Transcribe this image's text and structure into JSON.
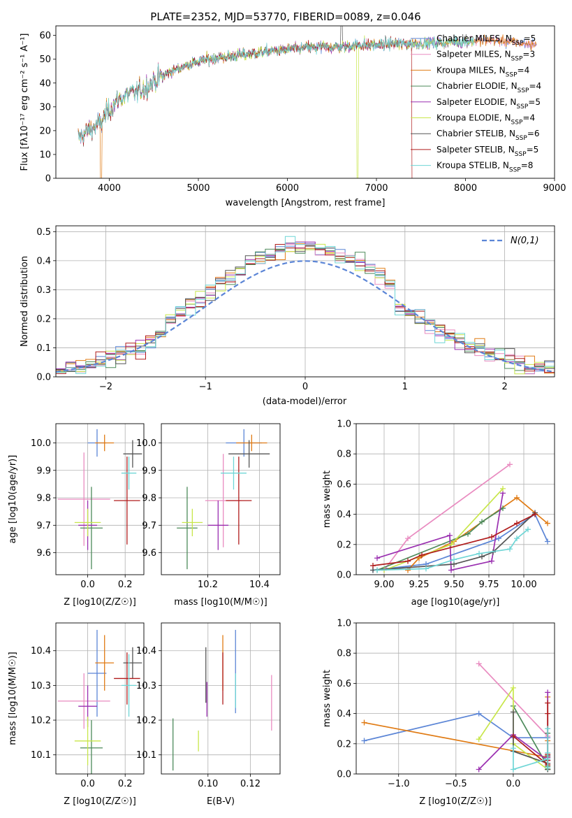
{
  "colors": {
    "chabrier_miles": "#5b85d6",
    "salpeter_miles": "#e98bc0",
    "kroupa_miles": "#e07b14",
    "chabrier_elodie": "#4c8a5a",
    "salpeter_elodie": "#9a2fb0",
    "kroupa_elodie": "#c8e64a",
    "chabrier_stelib": "#555555",
    "salpeter_stelib": "#b01c1c",
    "kroupa_stelib": "#6fd6d6",
    "normal_curve": "#5b85d6",
    "grid": "#b0b0b0"
  },
  "chart_data": [
    {
      "type": "line",
      "title": "PLATE=2352, MJD=53770, FIBERID=0089, z=0.046",
      "xlabel": "wavelength [Angstrom, rest frame]",
      "ylabel": "Flux [fλ10⁻¹⁷ erg cm⁻² s⁻¹ A⁻¹]",
      "xlim": [
        3400,
        9000
      ],
      "ylim": [
        0,
        64
      ],
      "xticks": [
        4000,
        5000,
        6000,
        7000,
        8000,
        9000
      ],
      "yticks": [
        0,
        10,
        20,
        30,
        40,
        50,
        60
      ],
      "grid": false,
      "legend_position": "upper-right",
      "legend": [
        {
          "label": "Chabrier MILES, N",
          "sub": "SSP",
          "val": "=5"
        },
        {
          "label": "Salpeter MILES, N",
          "sub": "SSP",
          "val": "=3"
        },
        {
          "label": "Kroupa MILES, N",
          "sub": "SSP",
          "val": "=4"
        },
        {
          "label": "Chabrier ELODIE, N",
          "sub": "SSP",
          "val": "=4"
        },
        {
          "label": "Salpeter ELODIE, N",
          "sub": "SSP",
          "val": "=5"
        },
        {
          "label": "Kroupa ELODIE, N",
          "sub": "SSP",
          "val": "=4"
        },
        {
          "label": "Chabrier STELIB, N",
          "sub": "SSP",
          "val": "=6"
        },
        {
          "label": "Salpeter STELIB, N",
          "sub": "SSP",
          "val": "=5"
        },
        {
          "label": "Kroupa STELIB, N",
          "sub": "SSP",
          "val": "=8"
        }
      ],
      "spectrum_envelope": {
        "x": [
          3650,
          3800,
          3900,
          4000,
          4100,
          4200,
          4300,
          4400,
          4500,
          4700,
          4900,
          5100,
          5300,
          5500,
          5700,
          6000,
          6300,
          6600,
          6800,
          7000,
          7200,
          7400,
          7700,
          8000,
          8300,
          8600,
          8800
        ],
        "y": [
          17,
          21,
          23,
          29,
          33,
          35,
          36,
          38,
          41,
          45,
          48,
          50,
          51,
          52,
          53,
          54,
          55,
          55,
          56,
          56,
          56.5,
          56.5,
          57,
          57.5,
          58,
          57,
          56
        ]
      }
    },
    {
      "type": "step",
      "xlabel": "(data-model)/error",
      "ylabel": "Normed distribution",
      "xlim": [
        -2.5,
        2.5
      ],
      "ylim": [
        0,
        0.52
      ],
      "xticks": [
        -2,
        -1,
        0,
        1,
        2
      ],
      "yticks": [
        0.0,
        0.1,
        0.2,
        0.3,
        0.4,
        0.5
      ],
      "grid": true,
      "legend_position": "upper-right",
      "legend": [
        "N(0,1)"
      ],
      "bin_width": 0.1
    },
    {
      "type": "errorbar",
      "xlabel": "Z [log10(Z/Z☉)]",
      "ylabel": "age  [log10(age/yr)]",
      "xlim": [
        -0.17,
        0.3
      ],
      "ylim": [
        9.52,
        10.07
      ],
      "xticks": [
        0.0,
        0.2
      ],
      "yticks": [
        9.6,
        9.7,
        9.8,
        9.9,
        10.0
      ],
      "grid": true,
      "points": [
        {
          "x": 0.05,
          "xe": 0.05,
          "y": 10.0,
          "ye": 0.05
        },
        {
          "x": -0.02,
          "xe": 0.14,
          "y": 9.795,
          "ye": 0.17
        },
        {
          "x": 0.09,
          "xe": 0.05,
          "y": 10.0,
          "ye": 0.03
        },
        {
          "x": 0.02,
          "xe": 0.06,
          "y": 9.69,
          "ye": 0.15
        },
        {
          "x": 0.0,
          "xe": 0.05,
          "y": 9.7,
          "ye": 0.09
        },
        {
          "x": 0.0,
          "xe": 0.07,
          "y": 9.71,
          "ye": 0.05
        },
        {
          "x": 0.24,
          "xe": 0.05,
          "y": 9.96,
          "ye": 0.05
        },
        {
          "x": 0.21,
          "xe": 0.07,
          "y": 9.79,
          "ye": 0.16
        },
        {
          "x": 0.22,
          "xe": 0.04,
          "y": 9.89,
          "ye": 0.06
        }
      ]
    },
    {
      "type": "errorbar",
      "xlabel": "mass [log10(M/M☉)]",
      "ylabel": "",
      "xlim": [
        10.02,
        10.48
      ],
      "ylim": [
        9.52,
        10.07
      ],
      "xticks": [
        10.2,
        10.4
      ],
      "yticks": [
        9.6,
        9.7,
        9.8,
        9.9,
        10.0
      ],
      "grid": true,
      "points": [
        {
          "x": 10.34,
          "xe": 0.07,
          "y": 10.0,
          "ye": 0.05
        },
        {
          "x": 10.26,
          "xe": 0.07,
          "y": 9.79,
          "ye": 0.17
        },
        {
          "x": 10.37,
          "xe": 0.06,
          "y": 10.0,
          "ye": 0.03
        },
        {
          "x": 10.12,
          "xe": 0.04,
          "y": 9.69,
          "ye": 0.15
        },
        {
          "x": 10.24,
          "xe": 0.04,
          "y": 9.7,
          "ye": 0.09
        },
        {
          "x": 10.14,
          "xe": 0.04,
          "y": 9.71,
          "ye": 0.05
        },
        {
          "x": 10.36,
          "xe": 0.08,
          "y": 9.96,
          "ye": 0.05
        },
        {
          "x": 10.32,
          "xe": 0.05,
          "y": 9.79,
          "ye": 0.16
        },
        {
          "x": 10.3,
          "xe": 0.05,
          "y": 9.89,
          "ye": 0.06
        }
      ]
    },
    {
      "type": "line",
      "xlabel": "age  [log10(age/yr)]",
      "ylabel": "mass weight",
      "xlim": [
        8.8,
        10.22
      ],
      "ylim": [
        0,
        1.0
      ],
      "xticks": [
        9.0,
        9.25,
        9.5,
        9.75,
        10.0
      ],
      "yticks": [
        0.0,
        0.2,
        0.4,
        0.6,
        0.8,
        1.0
      ],
      "grid": true,
      "series": [
        {
          "x": [
            8.92,
            9.3,
            9.82,
            10.08,
            10.17
          ],
          "y": [
            0.03,
            0.07,
            0.24,
            0.4,
            0.22
          ]
        },
        {
          "x": [
            9.0,
            9.17,
            9.9
          ],
          "y": [
            0.03,
            0.24,
            0.73
          ]
        },
        {
          "x": [
            9.17,
            9.25,
            9.5,
            9.95,
            10.17
          ],
          "y": [
            0.03,
            0.11,
            0.22,
            0.51,
            0.34
          ]
        },
        {
          "x": [
            8.95,
            9.6,
            9.7,
            9.85
          ],
          "y": [
            0.03,
            0.27,
            0.35,
            0.44
          ]
        },
        {
          "x": [
            8.95,
            9.47,
            9.48,
            9.77,
            9.85
          ],
          "y": [
            0.11,
            0.26,
            0.03,
            0.09,
            0.54
          ]
        },
        {
          "x": [
            9.0,
            9.48,
            9.85
          ],
          "y": [
            0.03,
            0.2,
            0.57
          ]
        },
        {
          "x": [
            8.92,
            9.5,
            9.7,
            9.78,
            10.08
          ],
          "y": [
            0.03,
            0.07,
            0.12,
            0.15,
            0.41
          ]
        },
        {
          "x": [
            8.92,
            9.17,
            9.27,
            9.77,
            9.95,
            10.08
          ],
          "y": [
            0.06,
            0.09,
            0.13,
            0.25,
            0.34,
            0.4
          ]
        },
        {
          "x": [
            8.95,
            9.3,
            9.5,
            9.68,
            9.9,
            9.95,
            10.03
          ],
          "y": [
            0.03,
            0.04,
            0.1,
            0.14,
            0.17,
            0.24,
            0.3
          ]
        }
      ]
    },
    {
      "type": "errorbar",
      "xlabel": "Z [log10(Z/Z☉)]",
      "ylabel": "mass [log10(M/M☉)]",
      "xlim": [
        -0.17,
        0.3
      ],
      "ylim": [
        10.045,
        10.48
      ],
      "xticks": [
        0.0,
        0.2
      ],
      "yticks": [
        10.1,
        10.2,
        10.3,
        10.4
      ],
      "grid": true,
      "points": [
        {
          "x": 0.05,
          "xe": 0.05,
          "y": 10.335,
          "ye": 0.125
        },
        {
          "x": -0.02,
          "xe": 0.14,
          "y": 10.255,
          "ye": 0.08
        },
        {
          "x": 0.09,
          "xe": 0.05,
          "y": 10.365,
          "ye": 0.08
        },
        {
          "x": 0.02,
          "xe": 0.06,
          "y": 10.12,
          "ye": 0.08
        },
        {
          "x": 0.0,
          "xe": 0.05,
          "y": 10.24,
          "ye": 0.06
        },
        {
          "x": 0.0,
          "xe": 0.07,
          "y": 10.14,
          "ye": 0.07
        },
        {
          "x": 0.24,
          "xe": 0.05,
          "y": 10.365,
          "ye": 0.045
        },
        {
          "x": 0.21,
          "xe": 0.07,
          "y": 10.32,
          "ye": 0.075
        },
        {
          "x": 0.22,
          "xe": 0.04,
          "y": 10.3,
          "ye": 0.09
        }
      ]
    },
    {
      "type": "errorbar",
      "xlabel": "E(B-V)",
      "ylabel": "",
      "xlim": [
        0.078,
        0.134
      ],
      "ylim": [
        10.045,
        10.48
      ],
      "xticks": [
        0.1,
        0.12
      ],
      "yticks": [
        10.1,
        10.2,
        10.3,
        10.4
      ],
      "grid": true,
      "points": [
        {
          "x": 0.113,
          "xe": 0.0,
          "y": 10.34,
          "ye": 0.12
        },
        {
          "x": 0.13,
          "xe": 0.0,
          "y": 10.25,
          "ye": 0.08
        },
        {
          "x": 0.107,
          "xe": 0.0,
          "y": 10.365,
          "ye": 0.08
        },
        {
          "x": 0.0835,
          "xe": 0.0,
          "y": 10.13,
          "ye": 0.075
        },
        {
          "x": 0.0995,
          "xe": 0.0,
          "y": 10.26,
          "ye": 0.05
        },
        {
          "x": 0.0955,
          "xe": 0.0,
          "y": 10.14,
          "ye": 0.03
        },
        {
          "x": 0.099,
          "xe": 0.0,
          "y": 10.33,
          "ye": 0.08
        },
        {
          "x": 0.107,
          "xe": 0.0,
          "y": 10.32,
          "ye": 0.075
        },
        {
          "x": 0.113,
          "xe": 0.0,
          "y": 10.285,
          "ye": 0.05
        }
      ]
    },
    {
      "type": "line",
      "xlabel": "Z [log10(Z/Z☉)]",
      "ylabel": "mass weight",
      "xlim": [
        -1.37,
        0.36
      ],
      "ylim": [
        0,
        1.0
      ],
      "xticks": [
        -1.0,
        -0.5,
        0.0
      ],
      "yticks": [
        0.0,
        0.2,
        0.4,
        0.6,
        0.8,
        1.0
      ],
      "grid": true,
      "series": [
        {
          "x": [
            -1.3,
            -0.3,
            0.0,
            0.3
          ],
          "y": [
            0.22,
            0.4,
            0.24,
            0.24
          ]
        },
        {
          "x": [
            -0.3,
            0.3
          ],
          "y": [
            0.73,
            0.25
          ]
        },
        {
          "x": [
            -1.3,
            0.3,
            0.3,
            0.3,
            0.3
          ],
          "y": [
            0.34,
            0.11,
            0.03,
            0.22,
            0.51
          ]
        },
        {
          "x": [
            0.0,
            0.3,
            0.3,
            0.3
          ],
          "y": [
            0.45,
            0.05,
            0.03,
            0.27
          ]
        },
        {
          "x": [
            -0.3,
            0.0,
            0.3,
            0.3,
            0.3
          ],
          "y": [
            0.03,
            0.26,
            0.09,
            0.11,
            0.54
          ]
        },
        {
          "x": [
            -0.3,
            0.0,
            0.0,
            0.3
          ],
          "y": [
            0.23,
            0.57,
            0.2,
            0.03
          ]
        },
        {
          "x": [
            0.0,
            0.0,
            0.3,
            0.3,
            0.3,
            0.3
          ],
          "y": [
            0.41,
            0.15,
            0.07,
            0.03,
            0.12,
            0.03
          ]
        },
        {
          "x": [
            0.0,
            0.3,
            0.3,
            0.3,
            0.3,
            0.3
          ],
          "y": [
            0.25,
            0.06,
            0.4,
            0.13,
            0.09,
            0.47
          ]
        },
        {
          "x": [
            0.0,
            0.0,
            0.3,
            0.3,
            0.3,
            0.3
          ],
          "y": [
            0.17,
            0.03,
            0.1,
            0.04,
            0.14,
            0.3
          ]
        }
      ]
    }
  ]
}
